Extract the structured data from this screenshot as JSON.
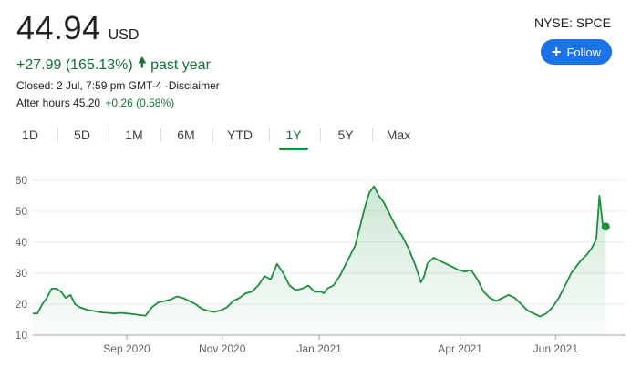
{
  "quote": {
    "price": "44.94",
    "currency": "USD",
    "change": "+27.99 (165.13%)",
    "period": "past year",
    "exchange_symbol": "NYSE: SPCE",
    "closed_text": "Closed: 2 Jul, 7:59 pm GMT-4 ·Disclaimer",
    "after_hours_label": "After hours 45.20",
    "after_hours_change": "+0.26 (0.58%)",
    "up_color": "#137333"
  },
  "follow_button": {
    "label": "Follow",
    "color": "#1a73e8"
  },
  "range_tabs": [
    "1D",
    "5D",
    "1M",
    "6M",
    "YTD",
    "1Y",
    "5Y",
    "Max"
  ],
  "active_tab": "1Y",
  "chart_data": {
    "type": "area",
    "title": "",
    "xlabel": "",
    "ylabel": "",
    "ylim": [
      10,
      62
    ],
    "yticks": [
      10,
      20,
      30,
      40,
      50,
      60
    ],
    "xtick_labels": [
      "Sep 2020",
      "Nov 2020",
      "Jan 2021",
      "Apr 2021",
      "Jun 2021"
    ],
    "xtick_days": [
      60,
      121,
      183,
      273,
      334
    ],
    "x_days_range": [
      0,
      367
    ],
    "line_color": "#1e8e3e",
    "x": [
      0,
      3,
      6,
      9,
      12,
      15,
      18,
      21,
      24,
      27,
      30,
      33,
      36,
      39,
      42,
      45,
      48,
      52,
      56,
      60,
      64,
      68,
      72,
      76,
      80,
      84,
      88,
      92,
      96,
      100,
      104,
      108,
      112,
      116,
      120,
      124,
      128,
      132,
      136,
      140,
      144,
      148,
      152,
      156,
      160,
      164,
      168,
      172,
      176,
      180,
      184,
      186,
      188,
      192,
      196,
      200,
      203,
      206,
      209,
      212,
      215,
      218,
      221,
      224,
      227,
      230,
      233,
      236,
      240,
      244,
      248,
      250,
      252,
      256,
      260,
      264,
      268,
      272,
      276,
      280,
      284,
      288,
      292,
      296,
      300,
      304,
      308,
      312,
      316,
      320,
      324,
      328,
      332,
      336,
      340,
      344,
      347,
      350,
      352,
      354,
      357,
      360,
      362,
      364,
      366
    ],
    "values": [
      17,
      17,
      20,
      22,
      25,
      25,
      24,
      22,
      23,
      20,
      19,
      18.5,
      18,
      17.8,
      17.5,
      17.3,
      17.2,
      17,
      17.2,
      17,
      16.8,
      16.5,
      16.3,
      19,
      20.5,
      21,
      21.5,
      22.5,
      22,
      21,
      20,
      18.5,
      17.8,
      17.5,
      18,
      19,
      21,
      22,
      23.5,
      24,
      26,
      29,
      28,
      33,
      30,
      26,
      24.5,
      25,
      26,
      24,
      24,
      23.5,
      25,
      26,
      29,
      33,
      36,
      39,
      45,
      51,
      56,
      58,
      55,
      53,
      50,
      47,
      44,
      42,
      38,
      33,
      27,
      29,
      33,
      35,
      34,
      33,
      32,
      31,
      30.5,
      31,
      28,
      24,
      22,
      21,
      22,
      23,
      22,
      20,
      18,
      17,
      16,
      17,
      19,
      22,
      26,
      30,
      32,
      34,
      35,
      36,
      38,
      41,
      55,
      46,
      45
    ]
  }
}
